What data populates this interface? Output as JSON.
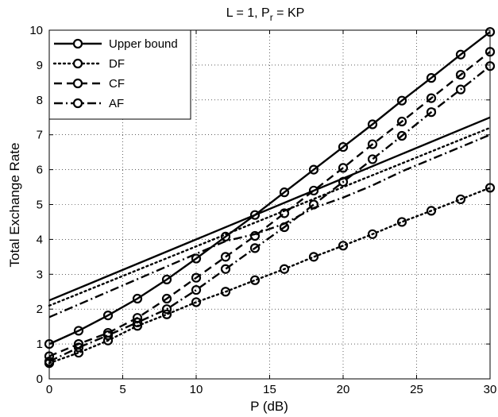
{
  "chart_data": {
    "type": "line",
    "title": "L = 1, P",
    "title_sub": "r",
    "title_tail": " = KP",
    "xlabel": "P (dB)",
    "ylabel": "Total Exchange Rate",
    "xlim": [
      0,
      30
    ],
    "ylim": [
      0,
      10
    ],
    "xticks": [
      0,
      5,
      10,
      15,
      20,
      25,
      30
    ],
    "yticks": [
      0,
      1,
      2,
      3,
      4,
      5,
      6,
      7,
      8,
      9,
      10
    ],
    "grid": true,
    "legend_position": "top-left",
    "legend": [
      {
        "label": "Upper bound",
        "style": "solid"
      },
      {
        "label": "DF",
        "style": "dotted"
      },
      {
        "label": "CF",
        "style": "dashed"
      },
      {
        "label": "AF",
        "style": "dashdot"
      }
    ],
    "series": [
      {
        "legend_index": 0,
        "style": "solid",
        "markers": false,
        "x": [
          0,
          30
        ],
        "y": [
          2.25,
          7.5
        ]
      },
      {
        "legend_index": 0,
        "style": "solid",
        "markers": true,
        "x": [
          0,
          2,
          4,
          6,
          8,
          10,
          12,
          14,
          16,
          18,
          20,
          22,
          24,
          26,
          28,
          30
        ],
        "y": [
          1.0,
          1.38,
          1.82,
          2.3,
          2.85,
          3.45,
          4.08,
          4.7,
          5.35,
          6.0,
          6.65,
          7.3,
          7.98,
          8.63,
          9.3,
          9.95
        ]
      },
      {
        "legend_index": 1,
        "style": "dotted",
        "markers": false,
        "x": [
          0,
          30
        ],
        "y": [
          2.1,
          7.2
        ]
      },
      {
        "legend_index": 1,
        "style": "dotted",
        "markers": true,
        "x": [
          0,
          2,
          4,
          6,
          8,
          10,
          12,
          14,
          16,
          18,
          20,
          22,
          24,
          26,
          28,
          30
        ],
        "y": [
          0.45,
          0.75,
          1.1,
          1.52,
          1.85,
          2.2,
          2.5,
          2.83,
          3.15,
          3.5,
          3.82,
          4.15,
          4.5,
          4.82,
          5.15,
          5.48
        ]
      },
      {
        "legend_index": 2,
        "style": "dashed",
        "markers": true,
        "x": [
          0,
          2,
          4,
          6,
          8,
          10,
          12,
          14,
          16,
          18,
          20,
          22,
          24,
          26,
          28,
          30
        ],
        "y": [
          0.65,
          1.0,
          1.32,
          1.75,
          2.3,
          2.9,
          3.5,
          4.1,
          4.75,
          5.4,
          6.05,
          6.73,
          7.38,
          8.05,
          8.72,
          9.38
        ]
      },
      {
        "legend_index": 3,
        "style": "dashdot",
        "markers": false,
        "x": [
          0,
          12,
          14,
          16,
          18,
          20,
          22,
          24,
          26,
          28,
          30
        ],
        "y": [
          1.77,
          3.95,
          4.15,
          4.45,
          4.9,
          5.2,
          5.55,
          5.95,
          6.3,
          6.65,
          7.0
        ]
      },
      {
        "legend_index": 3,
        "style": "dashdot",
        "markers": true,
        "x": [
          0,
          2,
          4,
          6,
          8,
          10,
          12,
          14,
          16,
          18,
          20,
          22,
          24,
          26,
          28,
          30
        ],
        "y": [
          0.5,
          0.9,
          1.25,
          1.62,
          2.0,
          2.55,
          3.15,
          3.75,
          4.35,
          5.0,
          5.65,
          6.3,
          6.97,
          7.65,
          8.3,
          8.97
        ]
      }
    ]
  }
}
